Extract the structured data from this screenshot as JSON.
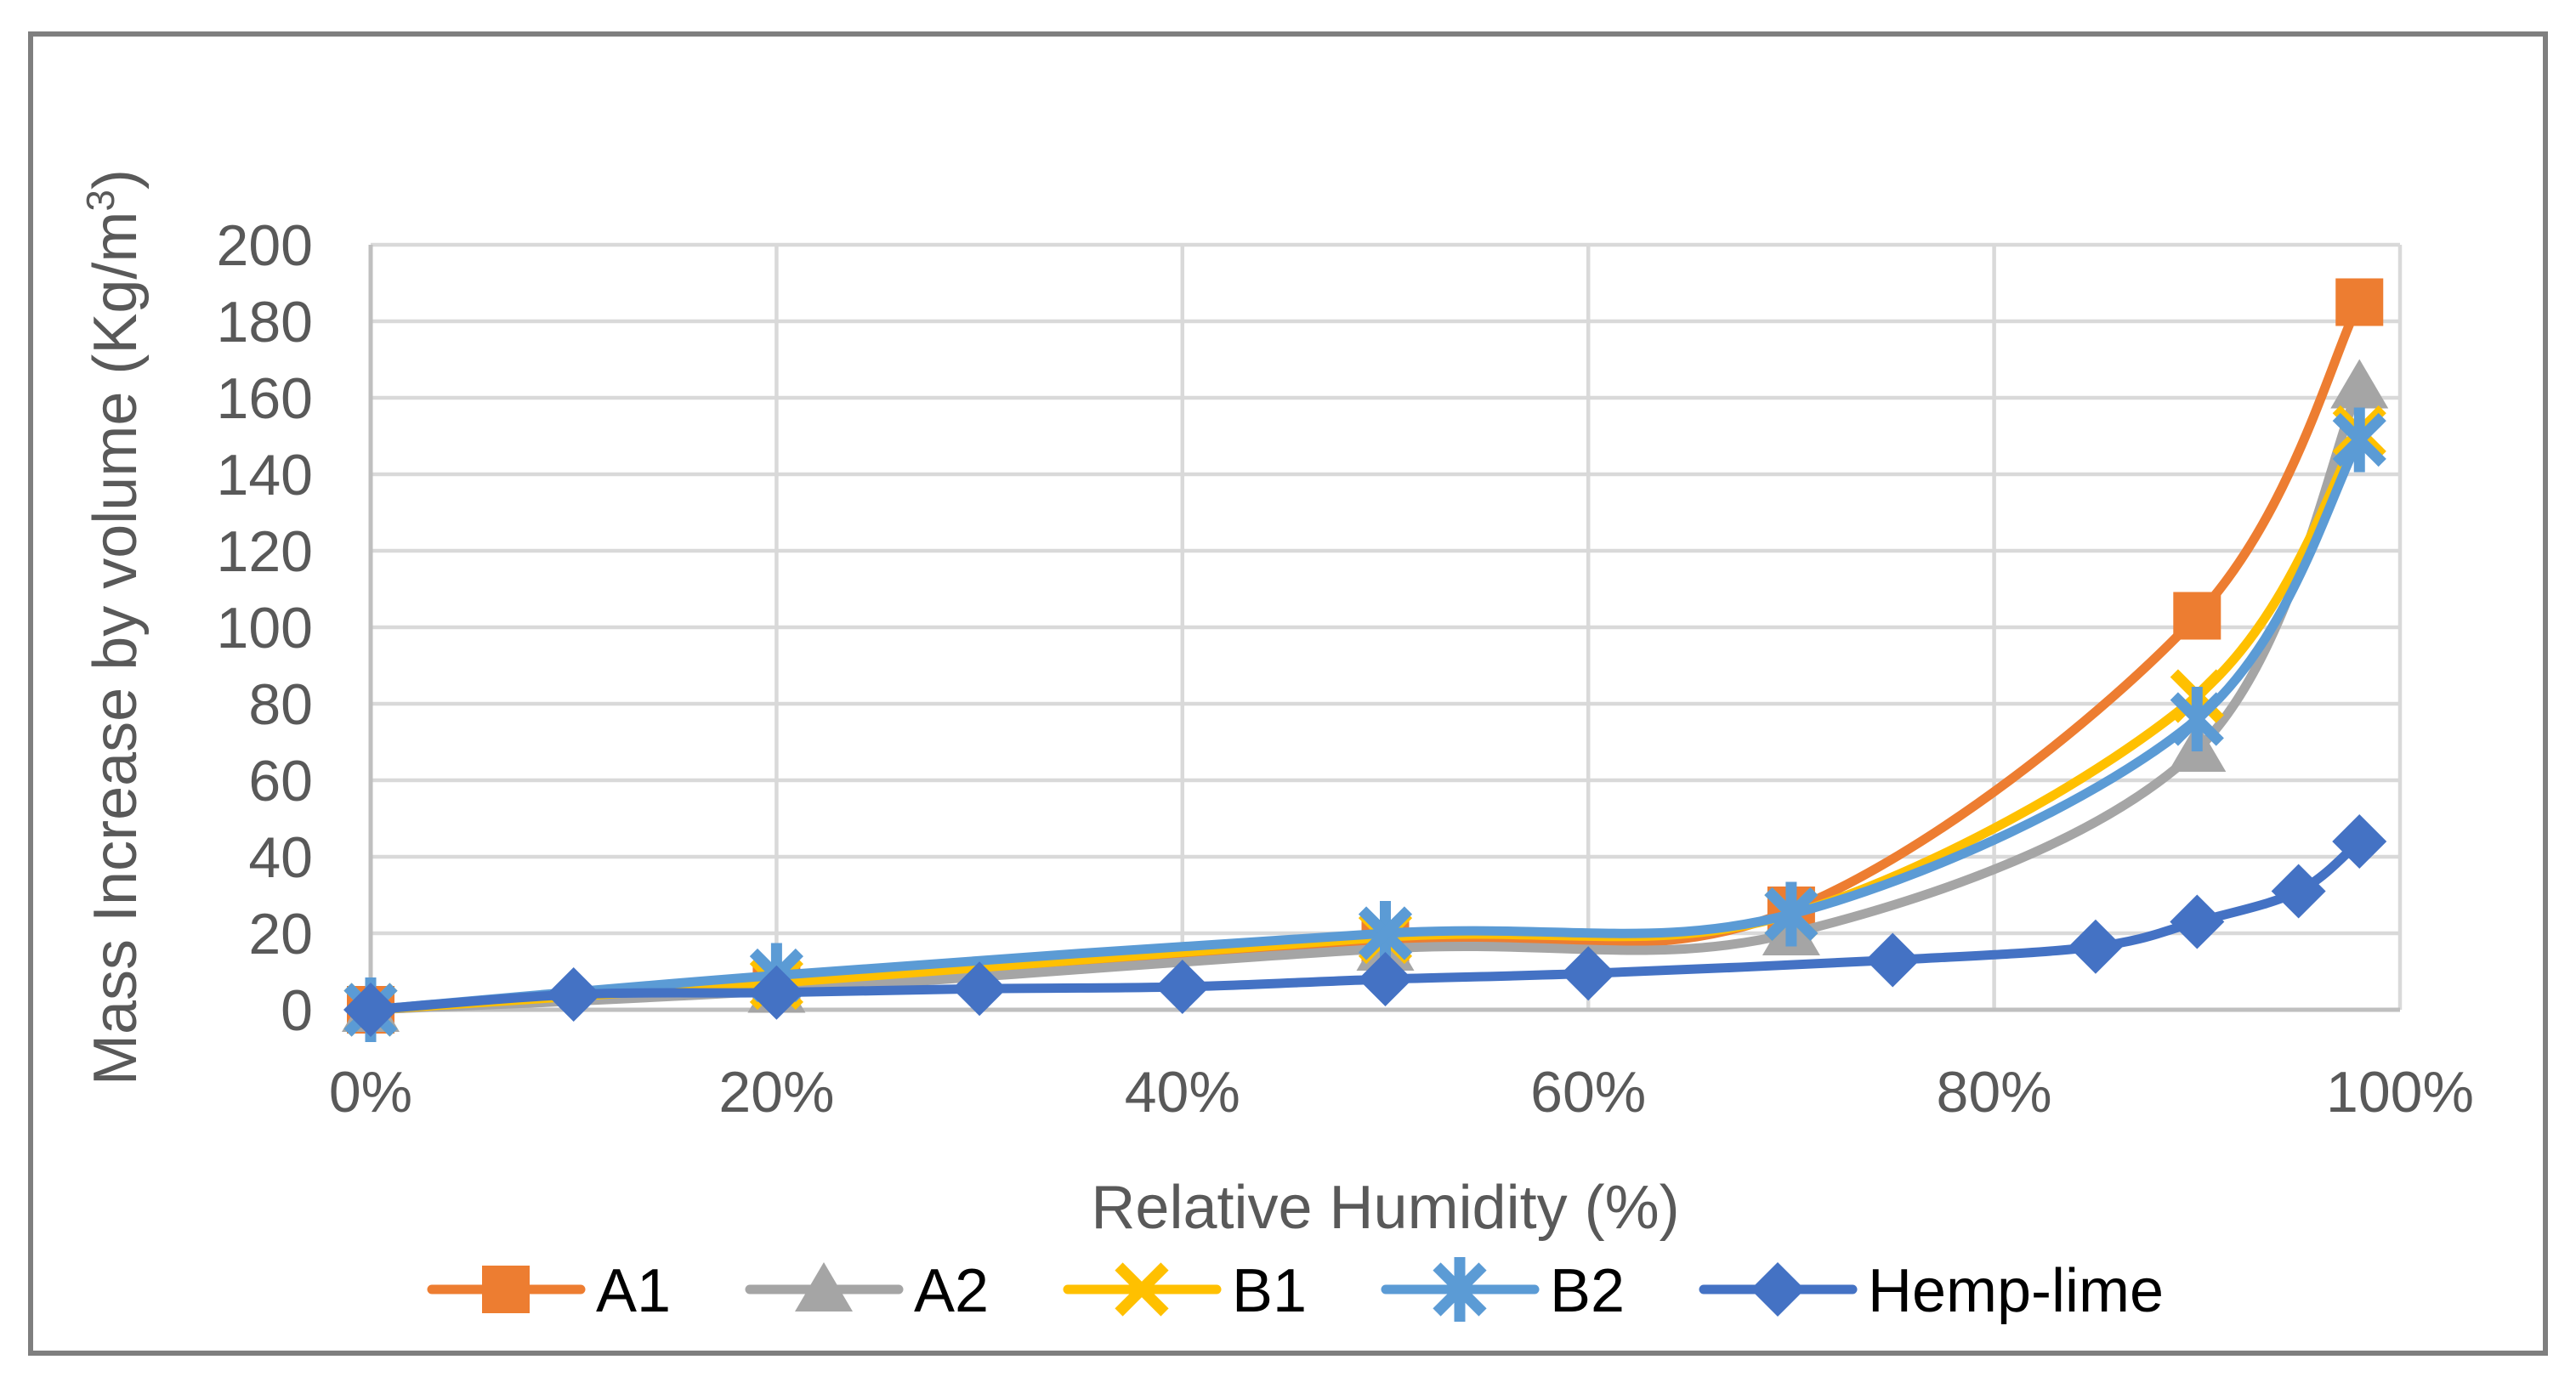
{
  "figure": {
    "background": "#FFFFFF",
    "border_color": "#7F7F7F",
    "gridline_color": "#D9D9D9",
    "axis_line_color": "#BFBFBF",
    "tick_label_color": "#595959",
    "axis_title_color": "#595959",
    "legend_text_color": "#000000"
  },
  "chart_data": {
    "type": "line",
    "title": "",
    "xlabel": "Relative Humidity (%)",
    "ylabel": "Mass Increase by volume (Kg/m³)",
    "ylabel_parts": {
      "base": "Mass Increase by volume (Kg/m",
      "sup": "3",
      "close": ")"
    },
    "xlim": [
      0,
      100
    ],
    "ylim": [
      0,
      200
    ],
    "y_tick_values": [
      0,
      20,
      40,
      60,
      80,
      100,
      120,
      140,
      160,
      180,
      200
    ],
    "y_tick_labels": [
      "0",
      "20",
      "40",
      "60",
      "80",
      "100",
      "120",
      "140",
      "160",
      "180",
      "200"
    ],
    "x_tick_values": [
      0,
      20,
      40,
      60,
      80,
      100
    ],
    "x_tick_labels": [
      "0%",
      "20%",
      "40%",
      "60%",
      "80%",
      "100%"
    ],
    "grid": true,
    "smoothed_lines": true,
    "legend_position": "bottom",
    "series": [
      {
        "name": "A1",
        "color": "#ED7D31",
        "marker": "square",
        "x": [
          0,
          20,
          50,
          70,
          90,
          98
        ],
        "y": [
          0,
          6,
          17,
          26,
          103,
          185
        ]
      },
      {
        "name": "A2",
        "color": "#A5A5A5",
        "marker": "triangle",
        "x": [
          0,
          20,
          50,
          70,
          90,
          98
        ],
        "y": [
          0,
          5,
          16,
          20,
          68,
          163
        ]
      },
      {
        "name": "B1",
        "color": "#FFC000",
        "marker": "x",
        "x": [
          0,
          20,
          50,
          70,
          90,
          98
        ],
        "y": [
          0,
          7,
          19,
          25,
          82,
          151
        ]
      },
      {
        "name": "B2",
        "color": "#5B9BD5",
        "marker": "asterisk",
        "x": [
          0,
          20,
          50,
          70,
          90,
          98
        ],
        "y": [
          0,
          9,
          20,
          25,
          76,
          149
        ]
      },
      {
        "name": "Hemp-lime",
        "color": "#4472C4",
        "marker": "diamond",
        "x": [
          0,
          10,
          20,
          30,
          40,
          50,
          60,
          75,
          85,
          90,
          95,
          98
        ],
        "y": [
          0,
          4,
          4.5,
          5.5,
          6,
          8,
          9.5,
          13,
          16.5,
          23,
          31,
          44
        ]
      }
    ]
  }
}
